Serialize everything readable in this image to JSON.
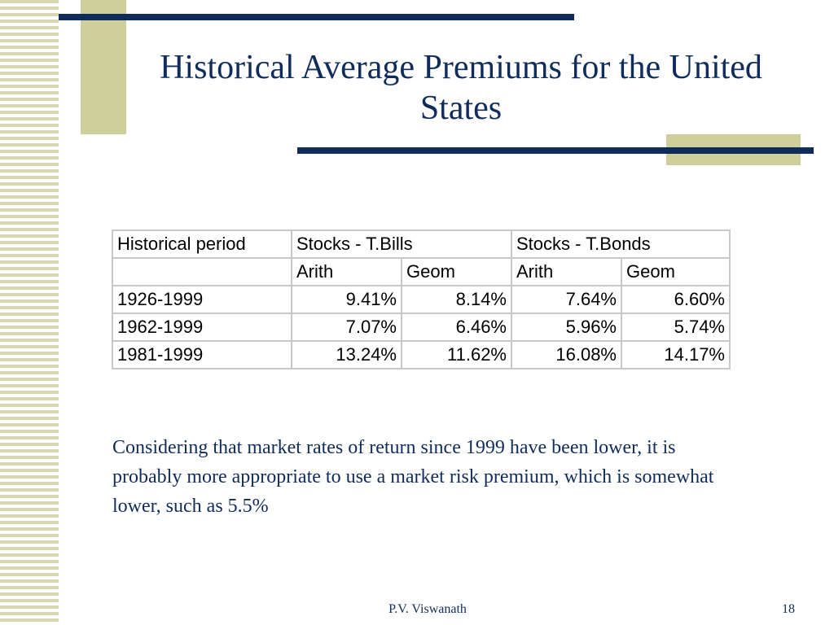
{
  "slide": {
    "title": "Historical Average Premiums for the United States",
    "body": "Considering that market rates of return since 1999 have been lower, it is probably more appropriate to use a market risk premium, which is somewhat lower, such as 5.5%",
    "footer_author": "P.V. Viswanath",
    "page_number": "18"
  },
  "table": {
    "header_row1": [
      "Historical period",
      "Stocks - T.Bills",
      "Stocks - T.Bonds"
    ],
    "header_row2": [
      "",
      "Arith",
      "Geom",
      "Arith",
      "Geom"
    ],
    "rows": [
      [
        "1926-1999",
        "9.41%",
        "8.14%",
        "7.64%",
        "6.60%"
      ],
      [
        "1962-1999",
        "7.07%",
        "6.46%",
        "5.96%",
        "5.74%"
      ],
      [
        "1981-1999",
        "13.24%",
        "11.62%",
        "16.08%",
        "14.17%"
      ]
    ]
  },
  "colors": {
    "accent_navy": "#0f2c5a",
    "accent_khaki": "#cfcf9c",
    "stripe": "#d7d8b2"
  }
}
